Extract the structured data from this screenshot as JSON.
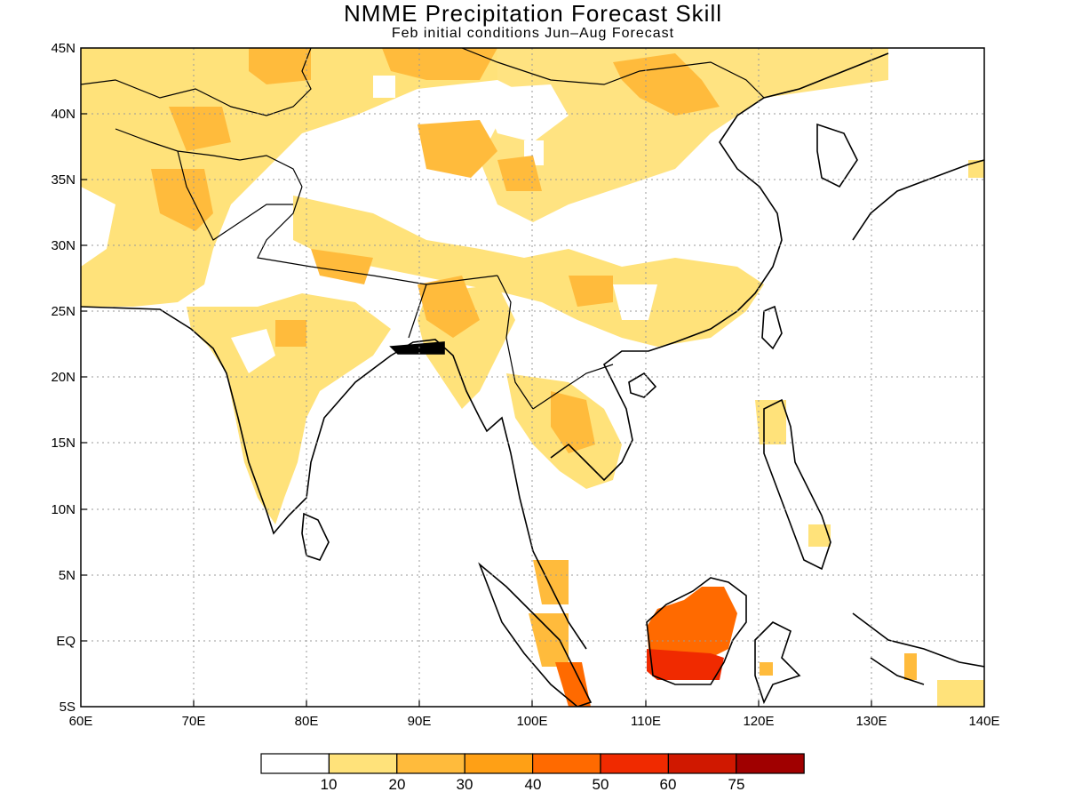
{
  "title": "NMME Precipitation Forecast Skill",
  "subtitle": "Feb initial conditions  Jun–Aug Forecast",
  "map": {
    "lon_range": [
      60,
      140
    ],
    "lat_range": [
      -5,
      45
    ],
    "lon_labels": [
      "60E",
      "70E",
      "80E",
      "90E",
      "100E",
      "110E",
      "120E",
      "130E",
      "140E"
    ],
    "lat_labels": [
      "5S",
      "EQ",
      "5N",
      "10N",
      "15N",
      "20N",
      "25N",
      "30N",
      "35N",
      "40N",
      "45N"
    ],
    "gridlines": "dotted"
  },
  "colorbar": {
    "labels": [
      "10",
      "20",
      "30",
      "40",
      "50",
      "60",
      "75"
    ],
    "colors": [
      "#ffffff",
      "#ffe27a",
      "#ffbb3c",
      "#ffa015",
      "#ff6a00",
      "#f02a00",
      "#d01800",
      "#a00000"
    ]
  }
}
